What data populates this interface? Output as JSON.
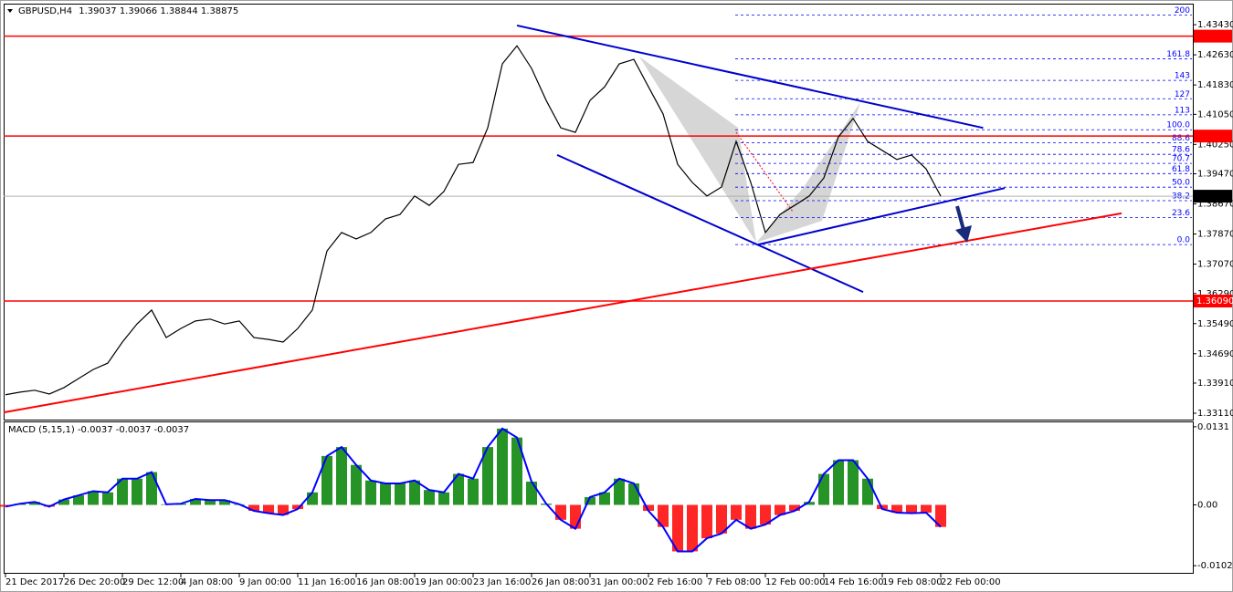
{
  "chart_data": [
    {
      "type": "line",
      "symbol": "GBPUSD,H4",
      "ohlc": [
        1.39037,
        1.39066,
        1.38844,
        1.38875
      ],
      "categories": [
        "21 Dec 2017",
        null,
        null,
        null,
        "26 Dec 20:00",
        null,
        null,
        null,
        "29 Dec 12:00",
        null,
        null,
        null,
        "4 Jan 08:00",
        null,
        null,
        null,
        "9 Jan 00:00",
        null,
        null,
        null,
        "11 Jan 16:00",
        null,
        null,
        null,
        "16 Jan 08:00",
        null,
        null,
        null,
        "19 Jan 00:00",
        null,
        null,
        null,
        "23 Jan 16:00",
        null,
        null,
        null,
        "26 Jan 08:00",
        null,
        null,
        null,
        "31 Jan 00:00",
        null,
        null,
        null,
        "2 Feb 16:00",
        null,
        null,
        null,
        "7 Feb 08:00",
        null,
        null,
        null,
        "12 Feb 00:00",
        null,
        null,
        null,
        "14 Feb 16:00",
        null,
        null,
        null,
        "19 Feb 08:00",
        null,
        null,
        null,
        "22 Feb 00:00"
      ],
      "values": [
        1.336,
        1.3367,
        1.3372,
        1.3362,
        1.3379,
        1.3403,
        1.3427,
        1.3444,
        1.35,
        1.3548,
        1.3585,
        1.3512,
        1.3536,
        1.3556,
        1.3561,
        1.3548,
        1.3556,
        1.3512,
        1.3507,
        1.35,
        1.3536,
        1.3585,
        1.3742,
        1.3791,
        1.3774,
        1.3791,
        1.3827,
        1.3839,
        1.3888,
        1.3863,
        1.39,
        1.3972,
        1.3977,
        1.4069,
        1.4239,
        1.4287,
        1.4227,
        1.4142,
        1.4069,
        1.4057,
        1.4142,
        1.4178,
        1.4239,
        1.4251,
        1.4178,
        1.4106,
        1.3972,
        1.3924,
        1.3888,
        1.3912,
        1.4033,
        1.3924,
        1.3791,
        1.3839,
        1.3863,
        1.3888,
        1.3936,
        1.4045,
        1.4094,
        1.4033,
        1.4009,
        1.3985,
        1.3997,
        1.396,
        1.38875
      ],
      "color": "#000000",
      "ylim": [
        1.3294,
        1.4399
      ],
      "yticks": [
        {
          "value": 1.4343,
          "label": "1.43430"
        },
        {
          "value": 1.4263,
          "label": "1.42630"
        },
        {
          "value": 1.4183,
          "label": "1.41830"
        },
        {
          "value": 1.4105,
          "label": "1.41050"
        },
        {
          "value": 1.4025,
          "label": "1.40250"
        },
        {
          "value": 1.3947,
          "label": "1.39470"
        },
        {
          "value": 1.3867,
          "label": "1.38670"
        },
        {
          "value": 1.3787,
          "label": "1.37870"
        },
        {
          "value": 1.3707,
          "label": "1.37070"
        },
        {
          "value": 1.3629,
          "label": "1.36290"
        },
        {
          "value": 1.3549,
          "label": "1.35490"
        },
        {
          "value": 1.3469,
          "label": "1.34690"
        },
        {
          "value": 1.3391,
          "label": "1.33910"
        },
        {
          "value": 1.3311,
          "label": "1.33110"
        }
      ],
      "price_labels": [
        {
          "value": 1.43127,
          "color": "#ff0000"
        },
        {
          "value": 1.40472,
          "color": "#ff0000"
        },
        {
          "value": 1.3609,
          "label": "1.36090",
          "color": "#ff0000"
        },
        {
          "value": 1.38875,
          "color": "#000000"
        }
      ],
      "fibonacci": {
        "color": "#0000ff",
        "range": [
          1.3759,
          1.4064
        ],
        "levels": [
          {
            "value": 0,
            "label": "0.0"
          },
          23.6,
          38.2,
          {
            "value": 50,
            "label": "50.0"
          },
          61.8,
          70.7,
          78.6,
          88.6,
          {
            "value": 100,
            "label": "100.0"
          },
          113,
          127,
          143,
          161.8,
          200
        ]
      },
      "trendlines": [
        {
          "color": "#0000cd",
          "x": [
            35,
            66.9
          ],
          "y": [
            1.4341,
            1.4069
          ]
        },
        {
          "color": "#0000cd",
          "x": [
            37.75,
            58.69
          ],
          "y": [
            1.3997,
            1.3633
          ]
        },
        {
          "color": "#0000cd",
          "x": [
            51.5,
            68.375
          ],
          "y": [
            1.3759,
            1.3909
          ]
        },
        {
          "color": "#ff0000",
          "x": [
            -0.125,
            76.375
          ],
          "y": [
            1.3313,
            1.3842
          ]
        }
      ]
    },
    {
      "type": "bar",
      "label": "MACD (5,15,1)",
      "header_values": [
        -0.0037,
        -0.0037,
        -0.0037
      ],
      "values": [
        -0.0003,
        0.0002,
        0.0005,
        -0.0003,
        0.0009,
        0.0016,
        0.0023,
        0.0021,
        0.0044,
        0.0044,
        0.0055,
        0.0001,
        0.0002,
        0.001,
        0.0008,
        0.0008,
        0.0001,
        -0.001,
        -0.0014,
        -0.0017,
        -0.0007,
        0.0021,
        0.0082,
        0.0097,
        0.0067,
        0.0041,
        0.0036,
        0.0036,
        0.0041,
        0.0025,
        0.0021,
        0.0052,
        0.0044,
        0.0097,
        0.0128,
        0.0113,
        0.0039,
        0.0002,
        -0.0025,
        -0.004,
        0.0013,
        0.0021,
        0.0044,
        0.0036,
        -0.001,
        -0.0037,
        -0.0078,
        -0.0078,
        -0.0056,
        -0.0048,
        -0.0025,
        -0.004,
        -0.0033,
        -0.0017,
        -0.001,
        0.0005,
        0.0052,
        0.0075,
        0.0075,
        0.0044,
        -0.0007,
        -0.0013,
        -0.0014,
        -0.0013,
        -0.0037
      ],
      "positive_color": "#008000",
      "negative_color": "#ff0000",
      "line_color": "#0000ff",
      "ylim": [
        -0.0114,
        0.014
      ],
      "yticks": [
        0.0131,
        {
          "value": 0,
          "label": "0.00"
        },
        -0.0102
      ]
    }
  ]
}
